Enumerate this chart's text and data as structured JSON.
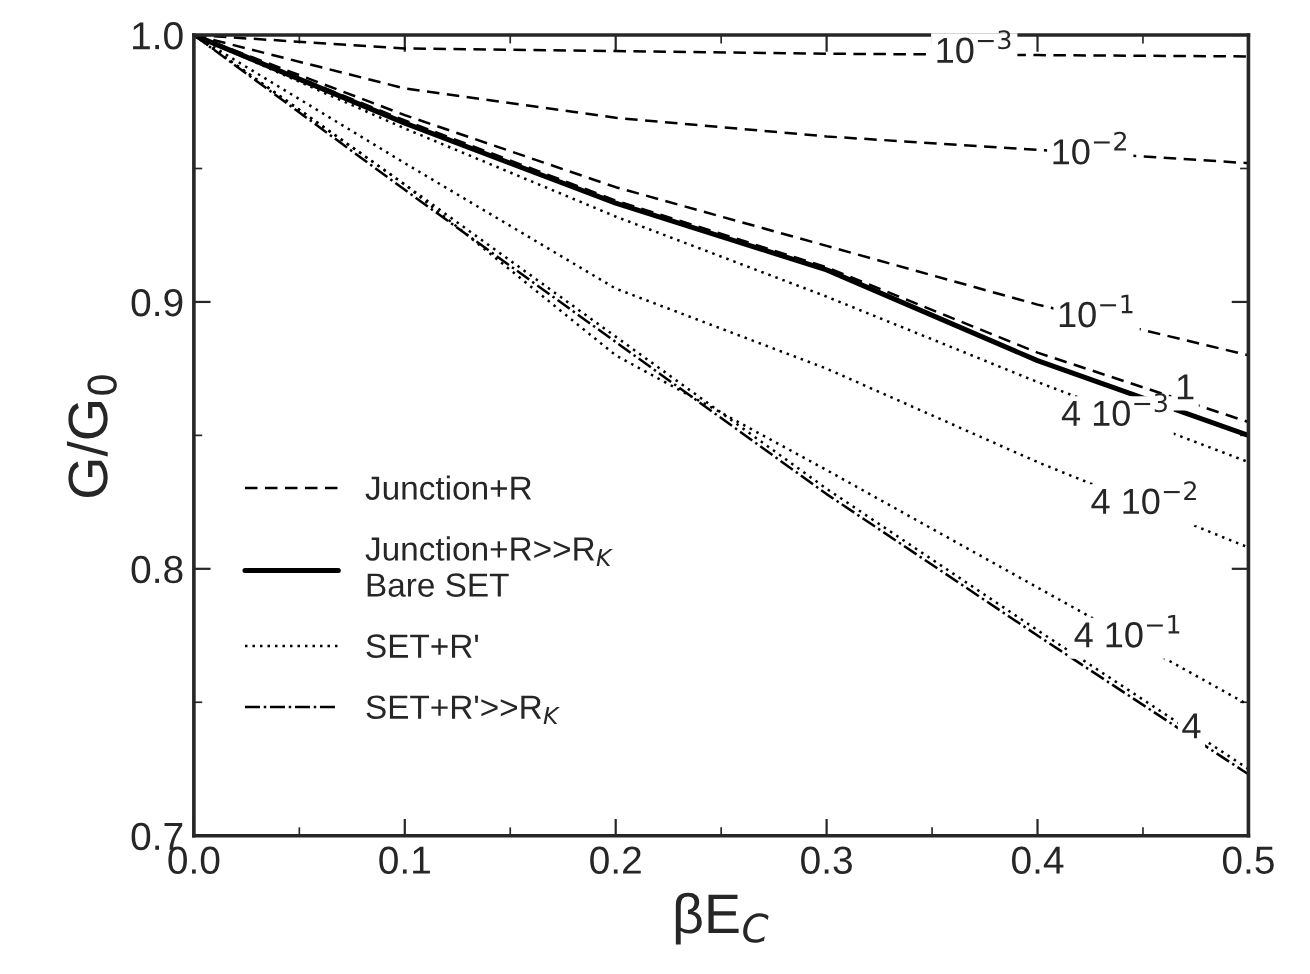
{
  "chart_data": {
    "type": "line",
    "xlabel": "βE$_{C}$",
    "ylabel": "G/G$_{0}$",
    "x": [
      0,
      0.1,
      0.2,
      0.3,
      0.4,
      0.5
    ],
    "xlim": [
      0,
      0.5
    ],
    "ylim": [
      0.7,
      1.0
    ],
    "xticks": [
      {
        "value": 0,
        "label": "0.0"
      },
      0.1,
      0.2,
      0.3,
      0.4,
      0.5
    ],
    "yticks": [
      0.7,
      0.8,
      0.9,
      {
        "value": 1.0,
        "label": "1.0"
      }
    ],
    "grid": false,
    "legend": "bottom left",
    "marker": "none",
    "series": [
      {
        "name": "Junction+R",
        "color": "#000000",
        "line_style": "dashed",
        "values": [
          1.0,
          0.995,
          0.994,
          0.993,
          0.9925,
          0.992
        ]
      },
      {
        "color": "#000000",
        "line_style": "dashed",
        "values": [
          1.0,
          0.98,
          0.969,
          0.962,
          0.957,
          0.952
        ]
      },
      {
        "color": "#000000",
        "line_style": "dashed",
        "values": [
          1.0,
          0.97,
          0.943,
          0.921,
          0.899,
          0.88
        ]
      },
      {
        "color": "#000000",
        "line_style": "dashed",
        "values": [
          1.0,
          0.968,
          0.938,
          0.913,
          0.881,
          0.855
        ]
      },
      {
        "name": "Junction+R>>R$_{K}$\nBare SET",
        "color": "#000000",
        "line_style": "solid",
        "values": [
          1.0,
          0.967,
          0.937,
          0.912,
          0.878,
          0.85
        ]
      },
      {
        "name": "SET+R'",
        "color": "#000000",
        "line_style": "dotted",
        "values": [
          1.0,
          0.965,
          0.932,
          0.902,
          0.87,
          0.84
        ]
      },
      {
        "color": "#000000",
        "line_style": "dotted",
        "values": [
          1.0,
          0.952,
          0.905,
          0.875,
          0.84,
          0.808
        ]
      },
      {
        "color": "#000000",
        "line_style": "dotted",
        "values": [
          1.0,
          0.944,
          0.88,
          0.837,
          0.793,
          0.749
        ]
      },
      {
        "color": "#000000",
        "line_style": "dotted",
        "values": [
          1.0,
          0.944,
          0.887,
          0.83,
          0.777,
          0.725
        ]
      },
      {
        "name": "SET+R'>>R$_{K}$",
        "color": "#000000",
        "line_style": "dashdot",
        "values": [
          1.0,
          0.942,
          0.885,
          0.828,
          0.775,
          0.723
        ]
      }
    ],
    "annotations": [
      {
        "text": "10$^{−3}$",
        "x": 0.37,
        "y": 0.993
      },
      {
        "text": "10$^{−2}$",
        "x": 0.425,
        "y": 0.955
      },
      {
        "text": "10$^{−1}$",
        "x": 0.428,
        "y": 0.894
      },
      {
        "text": "1",
        "x": 0.47,
        "y": 0.867
      },
      {
        "text": "4 10$^{−3}$",
        "x": 0.437,
        "y": 0.857
      },
      {
        "text": "4 10$^{−2}$",
        "x": 0.451,
        "y": 0.824
      },
      {
        "text": "4 10$^{−1}$",
        "x": 0.443,
        "y": 0.774
      },
      {
        "text": "4",
        "x": 0.473,
        "y": 0.74
      }
    ]
  }
}
